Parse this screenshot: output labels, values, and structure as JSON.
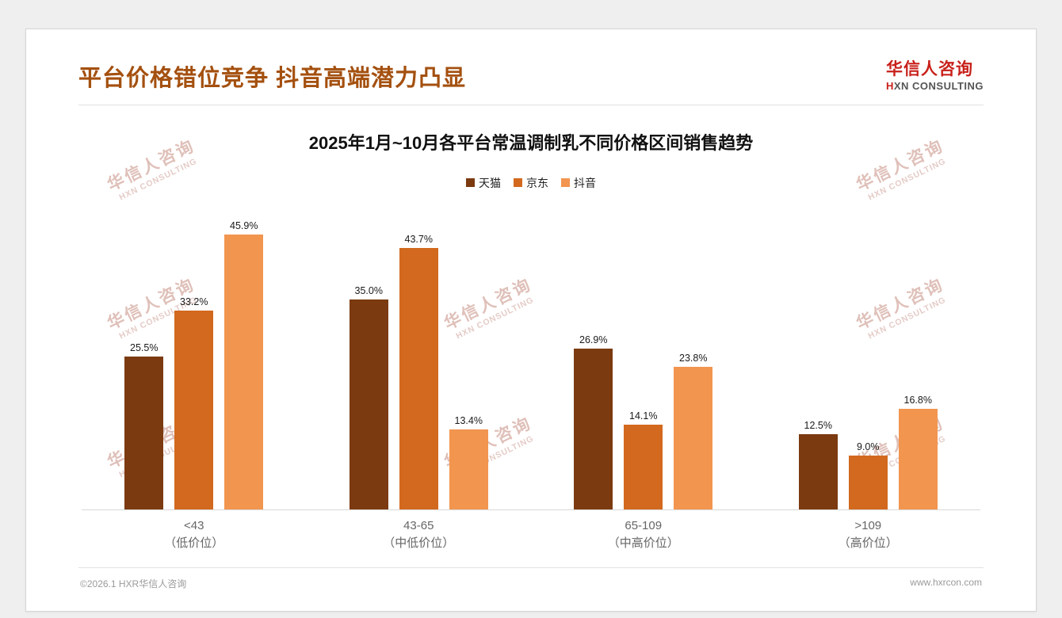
{
  "page": {
    "title": "平台价格错位竞争 抖音高端潜力凸显",
    "title_color": "#a4500f",
    "logo": {
      "name": "华信人咨询",
      "name_color": "#c8201a",
      "sub": "HXN CONSULTING"
    },
    "watermark": {
      "line1": "华信人咨询",
      "line2": "HXN CONSULTING"
    },
    "footer": {
      "left": "©2026.1 HXR华信人咨询",
      "right": "www.hxrcon.com"
    }
  },
  "chart_data": {
    "type": "bar",
    "title": "2025年1月~10月各平台常温调制乳不同价格区间销售趋势",
    "categories": [
      {
        "range": "<43",
        "label": "（低价位）"
      },
      {
        "range": "43-65",
        "label": "（中低价位）"
      },
      {
        "range": "65-109",
        "label": "（中高价位）"
      },
      {
        "range": ">109",
        "label": "（高价位）"
      }
    ],
    "series": [
      {
        "name": "天猫",
        "color": "#7b3a10",
        "values": [
          25.5,
          35.0,
          26.9,
          12.5
        ]
      },
      {
        "name": "京东",
        "color": "#d2691e",
        "values": [
          33.2,
          43.7,
          14.1,
          9.0
        ]
      },
      {
        "name": "抖音",
        "color": "#f2954f",
        "values": [
          45.9,
          13.4,
          23.8,
          16.8
        ]
      }
    ],
    "ylim": [
      0,
      50
    ],
    "value_suffix": "%",
    "legend_position": "top",
    "grid": false
  }
}
